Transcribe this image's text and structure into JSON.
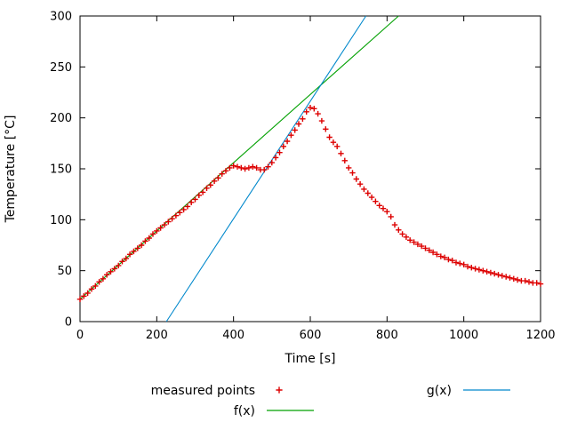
{
  "chart_data": {
    "type": "scatter",
    "title": "",
    "xlabel": "Time [s]",
    "ylabel": "Temperature [°C]",
    "xlim": [
      0,
      1200
    ],
    "ylim": [
      0,
      300
    ],
    "xticks": [
      0,
      200,
      400,
      600,
      800,
      1000,
      1200
    ],
    "yticks": [
      0,
      50,
      100,
      150,
      200,
      250,
      300
    ],
    "grid": false,
    "legend_position": "below-plot",
    "colors": {
      "measured": "#dd0000",
      "f": "#00a000",
      "g": "#0088cc",
      "axis": "#000000"
    },
    "series": [
      {
        "name": "measured points",
        "type": "points",
        "marker": "plus",
        "color_key": "measured",
        "t_start": 0,
        "t_step": 10,
        "temps": [
          22,
          25,
          28,
          32,
          35,
          39,
          42,
          46,
          49,
          52,
          55,
          59,
          62,
          66,
          69,
          72,
          75,
          79,
          82,
          86,
          89,
          92,
          95,
          98,
          101,
          104,
          107,
          110,
          113,
          117,
          120,
          124,
          127,
          131,
          134,
          138,
          141,
          145,
          148,
          151,
          153,
          152,
          151,
          150,
          151,
          152,
          151,
          149,
          149,
          152,
          156,
          161,
          166,
          172,
          177,
          183,
          188,
          194,
          199,
          206,
          210,
          209,
          204,
          197,
          189,
          181,
          176,
          172,
          165,
          158,
          151,
          146,
          140,
          135,
          130,
          126,
          122,
          118,
          114,
          111,
          108,
          103,
          95,
          90,
          86,
          83,
          80,
          78,
          76,
          74,
          72,
          70,
          68,
          66,
          64,
          63,
          61,
          60,
          58,
          57,
          56,
          54,
          53,
          52,
          51,
          50,
          49,
          48,
          47,
          46,
          45,
          44,
          43,
          42,
          41,
          40,
          40,
          39,
          38,
          38,
          37
        ]
      },
      {
        "name": "f(x)",
        "type": "line",
        "color_key": "f",
        "x": [
          0,
          830
        ],
        "y": [
          22,
          300
        ]
      },
      {
        "name": "g(x)",
        "type": "line",
        "color_key": "g",
        "x": [
          225,
          745
        ],
        "y": [
          0,
          300
        ]
      }
    ],
    "legend": [
      {
        "label": "measured points",
        "sample": "plus",
        "color_key": "measured",
        "col": 0,
        "row": 0
      },
      {
        "label": "f(x)",
        "sample": "line",
        "color_key": "f",
        "col": 0,
        "row": 1
      },
      {
        "label": "g(x)",
        "sample": "line",
        "color_key": "g",
        "col": 1,
        "row": 0
      }
    ]
  }
}
